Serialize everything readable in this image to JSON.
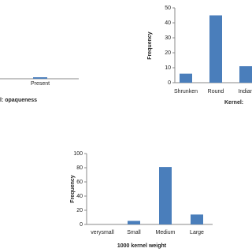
{
  "chart_data": [
    {
      "type": "bar",
      "x_label": "l: opaqueness",
      "categories": [
        "Present"
      ],
      "values": [
        1
      ],
      "color": "#4a7ebb",
      "ylim": [
        0,
        50
      ]
    },
    {
      "type": "bar",
      "y_label": "Frequency",
      "x_label": "Kernel:",
      "categories": [
        "Shrunken",
        "Round",
        "Indian"
      ],
      "values": [
        6,
        45,
        11
      ],
      "color": "#4a7ebb",
      "ylim": [
        0,
        50
      ],
      "yticks": [
        0,
        10,
        20,
        30,
        40,
        50
      ]
    },
    {
      "type": "bar",
      "y_label": "Frequency",
      "x_label": "1000 kernel weight",
      "categories": [
        "verysmall",
        "Small",
        "Medium",
        "Large"
      ],
      "values": [
        0,
        5,
        81,
        14
      ],
      "color": "#4a7ebb",
      "ylim": [
        0,
        100
      ],
      "yticks": [
        0,
        20,
        40,
        60,
        80,
        100
      ]
    }
  ]
}
